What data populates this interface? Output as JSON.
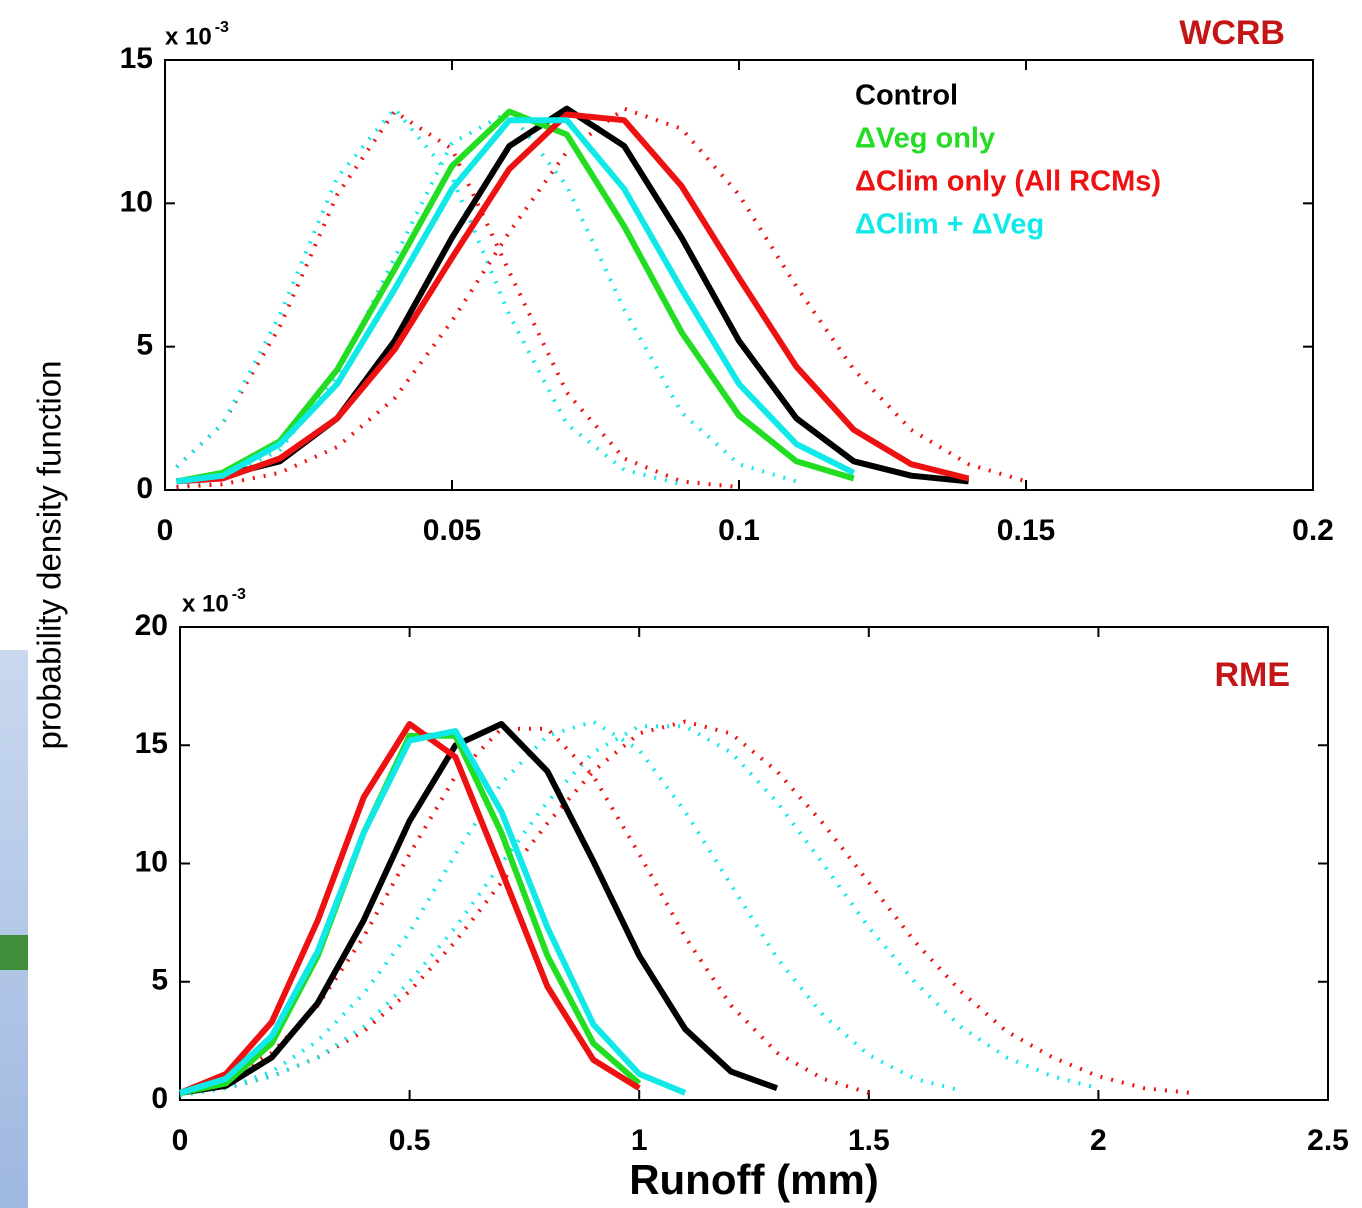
{
  "chart_data": [
    {
      "type": "line",
      "title": "WCRB",
      "ylabel": "probability density function",
      "yscale_label": {
        "base": "x 10",
        "exponent": "-3"
      },
      "x": [
        0.002,
        0.01,
        0.02,
        0.03,
        0.04,
        0.05,
        0.06,
        0.07,
        0.08,
        0.09,
        0.1,
        0.11,
        0.12,
        0.13,
        0.14,
        0.15
      ],
      "xlim": [
        0,
        0.2
      ],
      "xticks": [
        0,
        0.05,
        0.1,
        0.15,
        0.2
      ],
      "ylim": [
        0,
        15
      ],
      "yticks": [
        0,
        5,
        10,
        15
      ],
      "legend": "upper right",
      "series": [
        {
          "color": "#ee1111",
          "style": "dotted",
          "values": [
            0.8,
            2.3,
            5.7,
            10.3,
            13.2,
            11.9,
            7.6,
            3.4,
            1.1,
            0.3,
            0.1,
            null,
            null,
            null,
            null,
            null
          ]
        },
        {
          "color": "#11e8e8",
          "style": "dotted",
          "values": [
            0.8,
            2.3,
            6.1,
            10.9,
            13.3,
            10.9,
            6.1,
            2.3,
            0.7,
            0.2,
            null,
            null,
            null,
            null,
            null,
            null
          ]
        },
        {
          "color": "#11e8e8",
          "style": "dotted",
          "values": [
            0.1,
            0.4,
            1.4,
            4.0,
            8.1,
            12.1,
            13.2,
            10.6,
            6.3,
            2.7,
            0.9,
            0.3,
            null,
            null,
            null,
            null
          ]
        },
        {
          "color": "#ee1111",
          "style": "dotted",
          "values": [
            0.1,
            0.2,
            0.6,
            1.5,
            3.2,
            5.9,
            9.0,
            11.8,
            13.3,
            12.6,
            10.3,
            7.1,
            4.2,
            2.1,
            0.9,
            0.3
          ]
        },
        {
          "name": "Control",
          "color": "#000000",
          "style": "solid",
          "values": [
            0.3,
            0.5,
            1.0,
            2.5,
            5.2,
            8.8,
            12.0,
            13.3,
            12.0,
            8.8,
            5.2,
            2.5,
            1.0,
            0.5,
            0.3,
            null
          ]
        },
        {
          "name": "ΔVeg only",
          "color": "#22dd22",
          "style": "solid",
          "values": [
            0.3,
            0.6,
            1.7,
            4.2,
            7.7,
            11.3,
            13.2,
            12.4,
            9.2,
            5.5,
            2.6,
            1.0,
            0.4,
            null,
            null,
            null
          ]
        },
        {
          "name": "ΔClim only (All RCMs)",
          "color": "#ee1111",
          "style": "solid",
          "values": [
            0.3,
            0.4,
            1.1,
            2.5,
            4.9,
            8.1,
            11.2,
            13.1,
            12.9,
            10.6,
            7.4,
            4.3,
            2.1,
            0.9,
            0.4,
            null
          ]
        },
        {
          "name": "ΔClim + ΔVeg",
          "color": "#11e8e8",
          "style": "solid",
          "values": [
            0.3,
            0.5,
            1.6,
            3.7,
            7.0,
            10.5,
            12.9,
            12.9,
            10.5,
            7.0,
            3.7,
            1.6,
            0.6,
            null,
            null,
            null
          ]
        }
      ]
    },
    {
      "type": "line",
      "title": "RME",
      "xlabel": "Runoff (mm)",
      "yscale_label": {
        "base": "x 10",
        "exponent": "-3"
      },
      "x": [
        0,
        0.1,
        0.2,
        0.3,
        0.4,
        0.5,
        0.6,
        0.7,
        0.8,
        0.9,
        1,
        1.1,
        1.2,
        1.3,
        1.4,
        1.5,
        1.6,
        1.7,
        1.8,
        1.9,
        2,
        2.1,
        2.2,
        2.3
      ],
      "xlim": [
        0,
        2.5
      ],
      "xticks": [
        0,
        0.5,
        1,
        1.5,
        2,
        2.5
      ],
      "ylim": [
        0,
        20
      ],
      "yticks": [
        0,
        5,
        10,
        15,
        20
      ],
      "series": [
        {
          "color": "#ee1111",
          "style": "dotted",
          "values": [
            0.3,
            0.5,
            1.0,
            1.8,
            2.9,
            4.6,
            6.7,
            9.2,
            11.7,
            13.9,
            15.5,
            16,
            15.5,
            13.9,
            11.7,
            9.2,
            6.7,
            4.6,
            2.9,
            1.8,
            1.0,
            0.5,
            0.3,
            null
          ]
        },
        {
          "color": "#11e8e8",
          "style": "dotted",
          "values": [
            0.2,
            0.5,
            1.0,
            1.8,
            3.1,
            5.0,
            7.3,
            10.0,
            12.6,
            14.7,
            15.8,
            15.8,
            14.7,
            12.6,
            10.0,
            7.3,
            5.0,
            3.1,
            1.8,
            1.0,
            0.5,
            null,
            null,
            null
          ]
        },
        {
          "color": "#ee1111",
          "style": "dotted",
          "values": [
            0.3,
            0.9,
            2.0,
            4.0,
            6.9,
            10.4,
            13.7,
            15.7,
            15.7,
            13.7,
            10.4,
            6.9,
            4.0,
            2.0,
            0.9,
            0.3,
            null,
            null,
            null,
            null,
            null,
            null,
            null,
            null
          ]
        },
        {
          "color": "#11e8e8",
          "style": "dotted",
          "values": [
            0.2,
            0.5,
            1.2,
            2.5,
            4.5,
            7.1,
            10.4,
            13.4,
            15.4,
            16.0,
            14.8,
            12.2,
            9.1,
            6.0,
            3.6,
            1.9,
            0.9,
            0.4,
            null,
            null,
            null,
            null,
            null,
            null
          ]
        },
        {
          "color": "#000000",
          "style": "solid",
          "values": [
            0.3,
            0.6,
            1.8,
            4.1,
            7.6,
            11.8,
            15.0,
            15.9,
            13.9,
            10.1,
            6.1,
            3.0,
            1.2,
            0.5,
            null,
            null,
            null,
            null,
            null,
            null,
            null,
            null,
            null,
            null
          ]
        },
        {
          "color": "#22dd22",
          "style": "solid",
          "values": [
            0.3,
            0.7,
            2.4,
            6.1,
            11.3,
            15.4,
            15.4,
            11.3,
            6.1,
            2.4,
            0.7,
            null,
            null,
            null,
            null,
            null,
            null,
            null,
            null,
            null,
            null,
            null,
            null,
            null
          ]
        },
        {
          "color": "#ee1111",
          "style": "solid",
          "values": [
            0.3,
            1.1,
            3.3,
            7.6,
            12.8,
            15.9,
            14.5,
            9.7,
            4.8,
            1.7,
            0.5,
            null,
            null,
            null,
            null,
            null,
            null,
            null,
            null,
            null,
            null,
            null,
            null,
            null
          ]
        },
        {
          "color": "#11e8e8",
          "style": "solid",
          "values": [
            0.3,
            0.9,
            2.7,
            6.3,
            11.3,
            15.2,
            15.6,
            12.2,
            7.3,
            3.2,
            1.1,
            0.3,
            null,
            null,
            null,
            null,
            null,
            null,
            null,
            null,
            null,
            null,
            null,
            null
          ]
        }
      ]
    }
  ]
}
